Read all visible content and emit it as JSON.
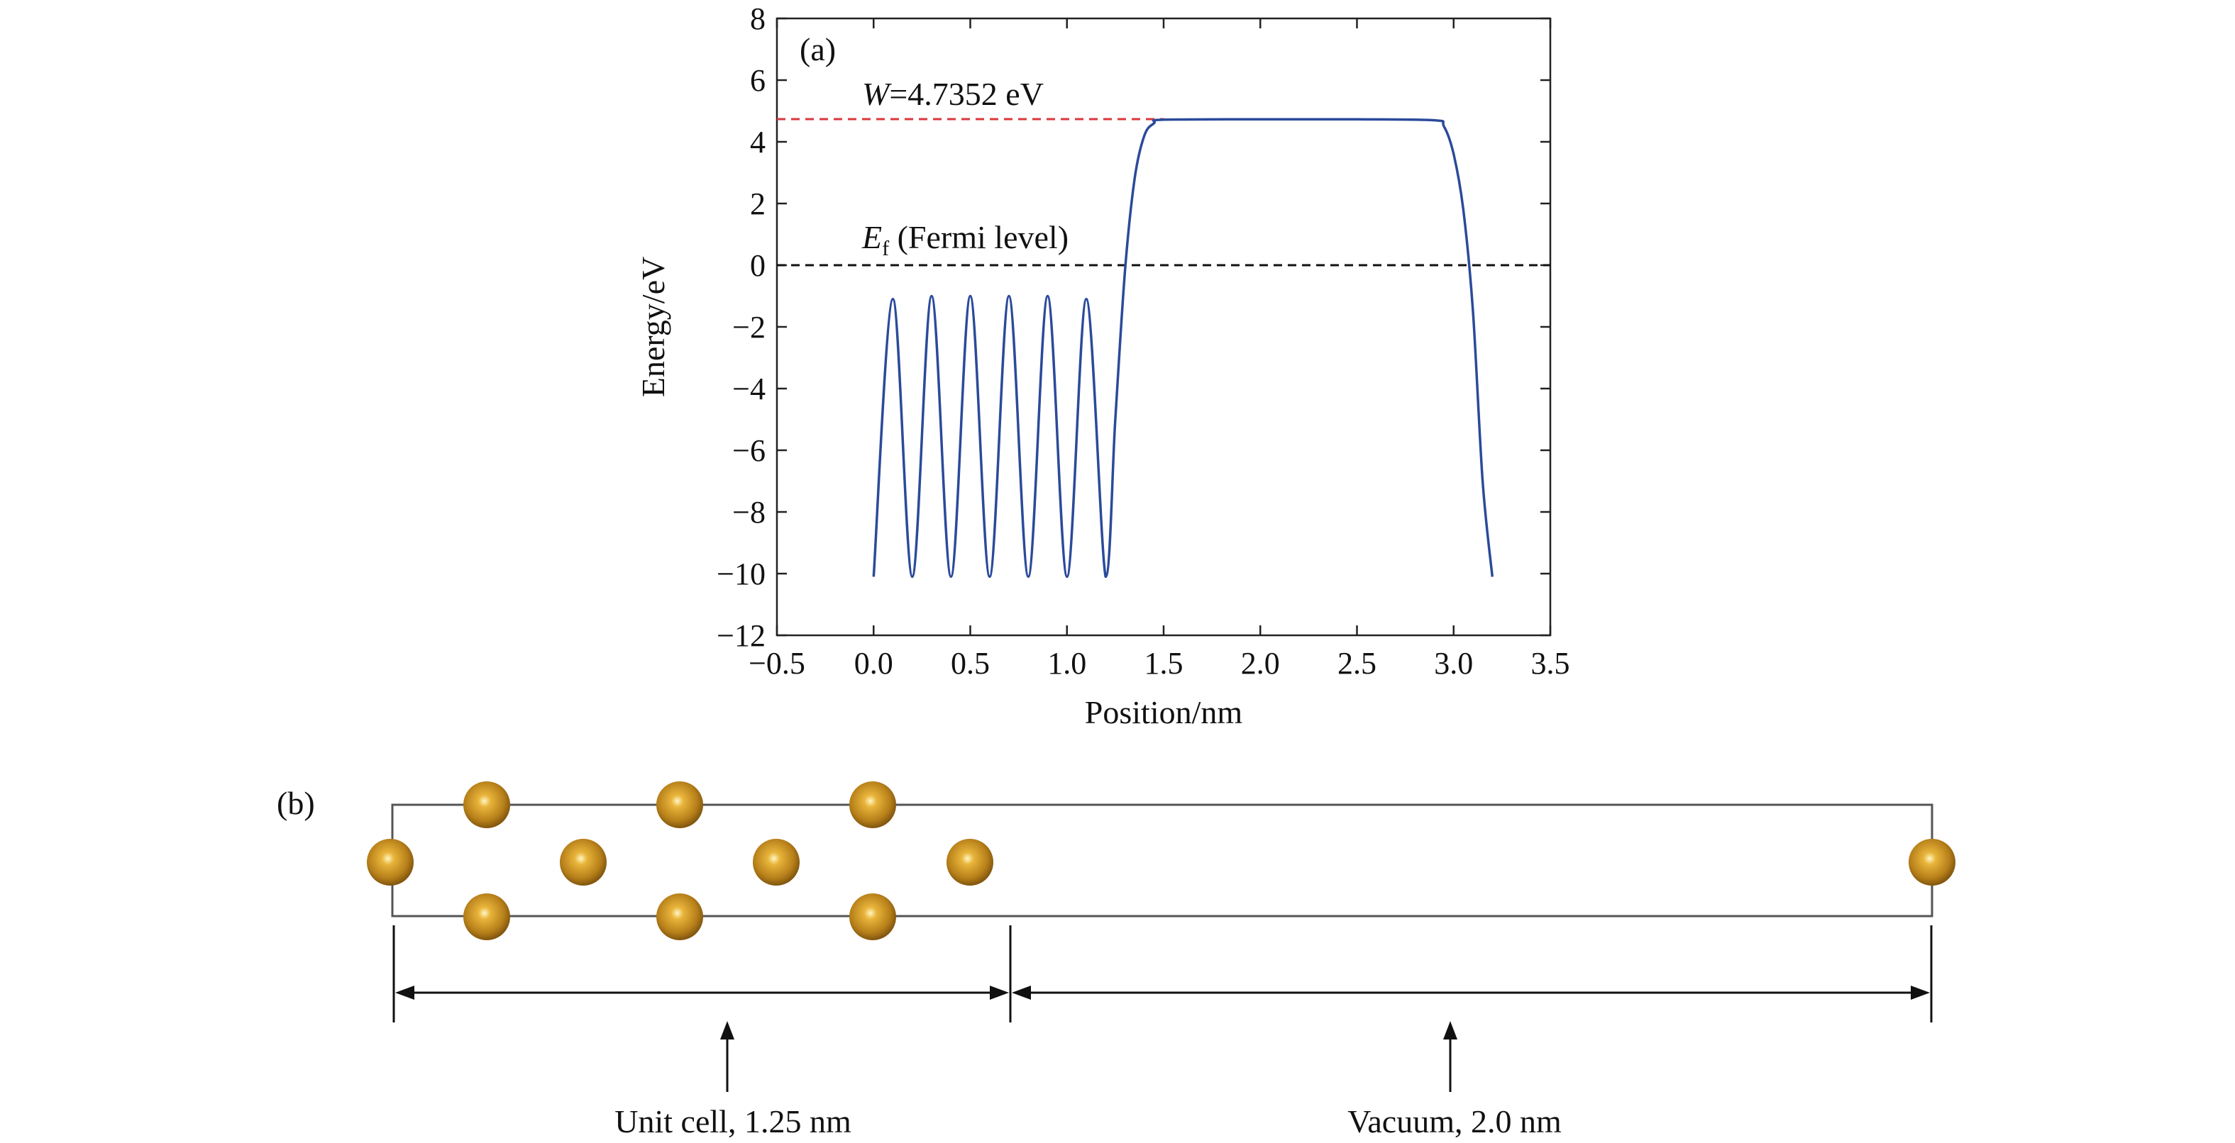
{
  "panel_a": {
    "label": "(a)",
    "work_function": {
      "symbol": "W",
      "value_text": "=4.7352 eV",
      "value": 4.7352,
      "line_color": "#d9383f"
    },
    "fermi": {
      "symbol": "E",
      "subscript": "f",
      "text": " (Fermi level)",
      "value": 0,
      "line_color": "#111111"
    }
  },
  "panel_b": {
    "label": "(b)",
    "atom_color": "#c08a1e",
    "unit_cell_label": "Unit cell, 1.25 nm",
    "vacuum_label": "Vacuum, 2.0 nm"
  },
  "chart_data": {
    "type": "line",
    "title": "",
    "xlabel": "Position/nm",
    "ylabel": "Energy/eV",
    "xlim": [
      -0.5,
      3.5
    ],
    "ylim": [
      -12,
      8
    ],
    "x_ticks": [
      -0.5,
      0.0,
      0.5,
      1.0,
      1.5,
      2.0,
      2.5,
      3.0,
      3.5
    ],
    "x_tick_labels": [
      "−0.5",
      "0.0",
      "0.5",
      "1.0",
      "1.5",
      "2.0",
      "2.5",
      "3.0",
      "3.5"
    ],
    "y_ticks": [
      -12,
      -10,
      -8,
      -6,
      -4,
      -2,
      0,
      2,
      4,
      6,
      8
    ],
    "y_tick_labels": [
      "−12",
      "−10",
      "−8",
      "−6",
      "−4",
      "−2",
      "0",
      "2",
      "4",
      "6",
      "8"
    ],
    "grid": false,
    "series": [
      {
        "color": "#2b4a9b",
        "x": [
          0.0,
          0.1,
          0.2,
          0.3,
          0.4,
          0.5,
          0.6,
          0.7,
          0.8,
          0.9,
          1.0,
          1.1,
          1.2,
          1.25,
          1.3,
          1.35,
          1.4,
          1.45,
          1.5,
          2.0,
          2.5,
          2.9,
          2.95,
          3.0,
          3.05,
          3.1,
          3.15,
          3.2
        ],
        "y": [
          -10.1,
          -1.1,
          -10.1,
          -1.0,
          -10.1,
          -1.0,
          -10.1,
          -1.0,
          -10.1,
          -1.0,
          -10.1,
          -1.1,
          -10.1,
          -5.0,
          -0.2,
          2.8,
          4.2,
          4.6,
          4.72,
          4.73,
          4.73,
          4.7,
          4.5,
          3.6,
          1.8,
          -1.5,
          -7.0,
          -10.1
        ]
      }
    ],
    "reference_lines": [
      {
        "y": 4.7352,
        "x_from": -0.5,
        "x_to": 1.5
      },
      {
        "y": 0,
        "x_from": -0.5,
        "x_to": 3.5
      }
    ]
  }
}
